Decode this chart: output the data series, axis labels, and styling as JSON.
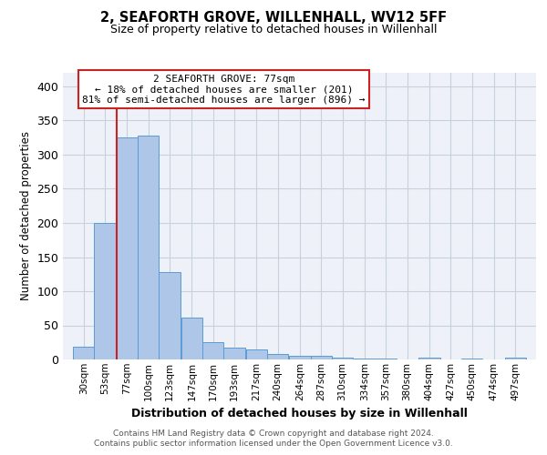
{
  "title": "2, SEAFORTH GROVE, WILLENHALL, WV12 5FF",
  "subtitle": "Size of property relative to detached houses in Willenhall",
  "xlabel": "Distribution of detached houses by size in Willenhall",
  "ylabel": "Number of detached properties",
  "bar_color": "#aec6e8",
  "bar_edge_color": "#5b9bd5",
  "bg_color": "#eef2f8",
  "grid_color": "#c8d0de",
  "red_line_color": "#cc2222",
  "annotation_box_color": "#ffffff",
  "annotation_border_color": "#cc2222",
  "annotation_title": "2 SEAFORTH GROVE: 77sqm",
  "annotation_line1": "← 18% of detached houses are smaller (201)",
  "annotation_line2": "81% of semi-detached houses are larger (896) →",
  "red_line_x": 77,
  "categories": [
    "30sqm",
    "53sqm",
    "77sqm",
    "100sqm",
    "123sqm",
    "147sqm",
    "170sqm",
    "193sqm",
    "217sqm",
    "240sqm",
    "264sqm",
    "287sqm",
    "310sqm",
    "334sqm",
    "357sqm",
    "380sqm",
    "404sqm",
    "427sqm",
    "450sqm",
    "474sqm",
    "497sqm"
  ],
  "bin_edges": [
    30,
    53,
    77,
    100,
    123,
    147,
    170,
    193,
    217,
    240,
    264,
    287,
    310,
    334,
    357,
    380,
    404,
    427,
    450,
    474,
    497
  ],
  "values": [
    19,
    200,
    325,
    328,
    128,
    62,
    26,
    17,
    15,
    8,
    6,
    5,
    3,
    2,
    1,
    0,
    3,
    0,
    2,
    0,
    3
  ],
  "ylim": [
    0,
    420
  ],
  "yticks": [
    0,
    50,
    100,
    150,
    200,
    250,
    300,
    350,
    400
  ],
  "footer1": "Contains HM Land Registry data © Crown copyright and database right 2024.",
  "footer2": "Contains public sector information licensed under the Open Government Licence v3.0."
}
